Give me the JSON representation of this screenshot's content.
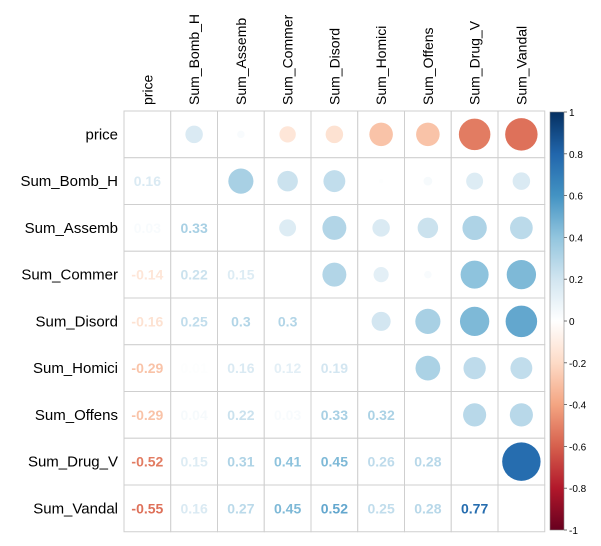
{
  "chart_data": {
    "type": "heatmap",
    "variables": [
      "price",
      "Sum_Bomb_H",
      "Sum_Assemb",
      "Sum_Commer",
      "Sum_Disord",
      "Sum_Homici",
      "Sum_Offens",
      "Sum_Drug_V",
      "Sum_Vandal"
    ],
    "matrix": [
      [
        1,
        0.16,
        0.03,
        -0.14,
        -0.16,
        -0.29,
        -0.29,
        -0.52,
        -0.55
      ],
      [
        0.16,
        1,
        0.33,
        0.22,
        0.25,
        0.01,
        0.04,
        0.15,
        0.16
      ],
      [
        0.03,
        0.33,
        1,
        0.15,
        0.3,
        0.16,
        0.22,
        0.31,
        0.27
      ],
      [
        -0.14,
        0.22,
        0.15,
        1,
        0.3,
        0.12,
        0.03,
        0.41,
        0.45
      ],
      [
        -0.16,
        0.25,
        0.3,
        0.3,
        1,
        0.19,
        0.33,
        0.45,
        0.52
      ],
      [
        -0.29,
        0.01,
        0.16,
        0.12,
        0.19,
        1,
        0.32,
        0.26,
        0.25
      ],
      [
        -0.29,
        0.04,
        0.22,
        0.03,
        0.33,
        0.32,
        1,
        0.28,
        0.28
      ],
      [
        -0.52,
        0.15,
        0.31,
        0.41,
        0.45,
        0.26,
        0.28,
        1,
        0.77
      ],
      [
        -0.55,
        0.16,
        0.27,
        0.45,
        0.52,
        0.25,
        0.28,
        0.77,
        1
      ]
    ],
    "upper": "circle",
    "lower": "number",
    "diagonal": "blank",
    "color_scale": {
      "range": [
        -1,
        1
      ],
      "ticks": [
        -1,
        -0.8,
        -0.6,
        -0.4,
        -0.2,
        0,
        0.2,
        0.4,
        0.6,
        0.8,
        1
      ],
      "tick_labels": [
        "-1",
        "-0.8",
        "-0.6",
        "-0.4",
        "-0.2",
        "0",
        "0.2",
        "0.4",
        "0.6",
        "0.8",
        "1"
      ],
      "stops": [
        "#67001F",
        "#B2182B",
        "#D6604D",
        "#F4A582",
        "#FDDBC7",
        "#FFFFFF",
        "#D1E5F0",
        "#92C5DE",
        "#4393C3",
        "#2166AC",
        "#053061"
      ]
    },
    "grid": true,
    "legend": "right"
  }
}
